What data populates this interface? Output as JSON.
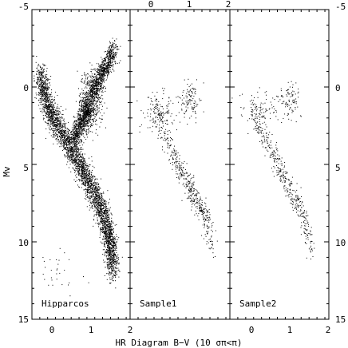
{
  "chart_data": {
    "type": "scatter",
    "caption": "HR Diagram   B−V  (10 σπ<π)",
    "ylabel": "Mv",
    "ylim": [
      -5,
      15
    ],
    "y_inverted": true,
    "y_ticks": [
      "-5",
      "0",
      "5",
      "10",
      "15"
    ],
    "y_tick_values": [
      -5,
      0,
      5,
      10,
      15
    ],
    "xlim": [
      -0.5,
      2
    ],
    "x_ticks": [
      "0",
      "1",
      "2"
    ],
    "x_tick_values": [
      0,
      1,
      2
    ],
    "panels": [
      {
        "name": "Hipparcos",
        "density": 5.0,
        "features": [
          {
            "kind": "main_sequence",
            "points": [
              [
                -0.3,
                -1
              ],
              [
                -0.2,
                0.5
              ],
              [
                -0.05,
                1.5
              ],
              [
                0.15,
                2.5
              ],
              [
                0.4,
                3.5
              ],
              [
                0.6,
                4.5
              ],
              [
                0.8,
                5.5
              ],
              [
                1.0,
                6.5
              ],
              [
                1.2,
                7.5
              ],
              [
                1.35,
                8.5
              ],
              [
                1.45,
                9.5
              ],
              [
                1.5,
                10.5
              ],
              [
                1.55,
                12
              ]
            ],
            "spread": 0.45
          },
          {
            "kind": "subgiant_branch",
            "points": [
              [
                0.55,
                3.5
              ],
              [
                0.7,
                2.5
              ],
              [
                0.85,
                1.8
              ],
              [
                0.95,
                1.2
              ]
            ],
            "spread": 0.4
          },
          {
            "kind": "red_clump",
            "center": [
              1.0,
              0.8
            ],
            "sigma": [
              0.15,
              0.9
            ]
          },
          {
            "kind": "red_giant_branch",
            "points": [
              [
                1.0,
                0.5
              ],
              [
                1.2,
                -0.5
              ],
              [
                1.4,
                -1.5
              ],
              [
                1.6,
                -2.5
              ]
            ],
            "spread": 0.35
          },
          {
            "kind": "white_dwarfs",
            "center": [
              0.1,
              12
            ],
            "sigma": [
              0.35,
              0.9
            ]
          }
        ]
      },
      {
        "name": "Sample1",
        "density": 1.2,
        "features": [
          {
            "kind": "main_sequence",
            "points": [
              [
                0.1,
                1
              ],
              [
                0.3,
                3
              ],
              [
                0.6,
                4.5
              ],
              [
                0.8,
                5.5
              ],
              [
                1.0,
                6.5
              ],
              [
                1.2,
                7.5
              ],
              [
                1.4,
                8.5
              ],
              [
                1.55,
                10.5
              ]
            ],
            "spread": 0.35
          },
          {
            "kind": "red_clump",
            "center": [
              1.0,
              0.8
            ],
            "sigma": [
              0.12,
              0.6
            ]
          },
          {
            "kind": "turnoff",
            "center": [
              0.3,
              1.5
            ],
            "sigma": [
              0.25,
              0.7
            ]
          }
        ]
      },
      {
        "name": "Sample2",
        "density": 1.0,
        "features": [
          {
            "kind": "main_sequence",
            "points": [
              [
                0.1,
                1
              ],
              [
                0.3,
                3
              ],
              [
                0.6,
                4.5
              ],
              [
                0.8,
                5.5
              ],
              [
                1.0,
                6.5
              ],
              [
                1.2,
                7.5
              ],
              [
                1.4,
                8.5
              ],
              [
                1.55,
                10.5
              ]
            ],
            "spread": 0.35
          },
          {
            "kind": "red_clump",
            "center": [
              1.0,
              0.9
            ],
            "sigma": [
              0.12,
              0.6
            ]
          },
          {
            "kind": "turnoff",
            "center": [
              0.3,
              1.5
            ],
            "sigma": [
              0.25,
              0.7
            ]
          }
        ]
      }
    ]
  }
}
